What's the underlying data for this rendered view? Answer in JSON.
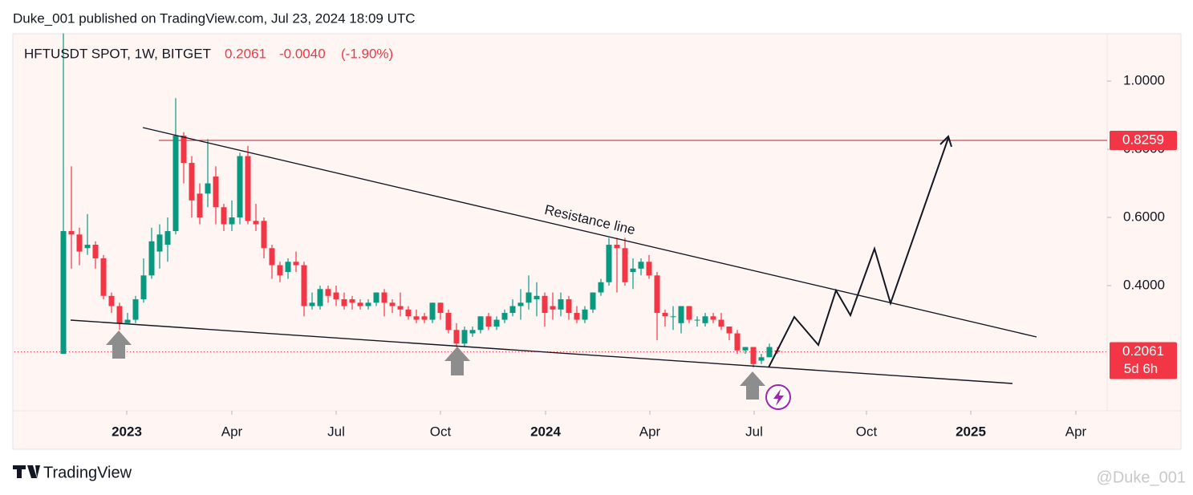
{
  "header": {
    "published": "Duke_001 published on TradingView.com, Jul 23, 2024 18:09 UTC",
    "symbol": "HFTUSDT SPOT, 1W, BITGET",
    "price": "0.2061",
    "change": "-0.0040",
    "change_pct": "(-1.90%)"
  },
  "chart_data": {
    "type": "candlestick",
    "annotation": "Resistance line",
    "up_color": "#089981",
    "down_color": "#f23645",
    "x": [
      0,
      1,
      2,
      3,
      4,
      5,
      6,
      7,
      8,
      9,
      10,
      11,
      12,
      13,
      14,
      15,
      16,
      17,
      18,
      19,
      20,
      21,
      22,
      23,
      24,
      25,
      26,
      27,
      28,
      29,
      30,
      31,
      32,
      33,
      34,
      35,
      36,
      37,
      38,
      39,
      40,
      41,
      42,
      43,
      44,
      45,
      46,
      47,
      48,
      49,
      50,
      51,
      52,
      53,
      54,
      55,
      56,
      57,
      58,
      59,
      60,
      61,
      62,
      63,
      64,
      65,
      66,
      67,
      68,
      69,
      70,
      71,
      72,
      73,
      74,
      75,
      76,
      77,
      78,
      79,
      80,
      81,
      82,
      83,
      84,
      85,
      86,
      87,
      88,
      89
    ],
    "open": [
      0.2,
      0.56,
      0.55,
      0.51,
      0.52,
      0.48,
      0.37,
      0.34,
      0.29,
      0.3,
      0.36,
      0.43,
      0.5,
      0.52,
      0.56,
      0.84,
      0.76,
      0.67,
      0.67,
      0.72,
      0.63,
      0.58,
      0.6,
      0.78,
      0.59,
      0.59,
      0.51,
      0.46,
      0.44,
      0.47,
      0.46,
      0.34,
      0.34,
      0.39,
      0.38,
      0.36,
      0.36,
      0.35,
      0.34,
      0.35,
      0.38,
      0.35,
      0.34,
      0.33,
      0.31,
      0.31,
      0.3,
      0.35,
      0.32,
      0.27,
      0.23,
      0.26,
      0.27,
      0.31,
      0.28,
      0.3,
      0.32,
      0.34,
      0.35,
      0.36,
      0.37,
      0.34,
      0.33,
      0.36,
      0.32,
      0.3,
      0.33,
      0.38,
      0.41,
      0.52,
      0.51,
      0.44,
      0.45,
      0.47,
      0.43,
      0.32,
      0.31,
      0.29,
      0.34,
      0.3,
      0.29,
      0.31,
      0.3,
      0.28,
      0.26,
      0.21,
      0.22,
      0.18,
      0.19,
      0.21
    ],
    "high": [
      1.14,
      0.75,
      0.57,
      0.61,
      0.53,
      0.49,
      0.38,
      0.35,
      0.32,
      0.37,
      0.48,
      0.57,
      0.58,
      0.6,
      0.95,
      0.85,
      0.78,
      0.7,
      0.83,
      0.75,
      0.64,
      0.65,
      0.79,
      0.81,
      0.64,
      0.6,
      0.52,
      0.47,
      0.48,
      0.5,
      0.47,
      0.38,
      0.4,
      0.4,
      0.4,
      0.38,
      0.37,
      0.36,
      0.36,
      0.38,
      0.39,
      0.36,
      0.38,
      0.34,
      0.33,
      0.32,
      0.35,
      0.35,
      0.33,
      0.29,
      0.28,
      0.28,
      0.31,
      0.32,
      0.31,
      0.33,
      0.36,
      0.39,
      0.43,
      0.41,
      0.38,
      0.38,
      0.38,
      0.37,
      0.34,
      0.34,
      0.38,
      0.42,
      0.54,
      0.54,
      0.54,
      0.48,
      0.48,
      0.49,
      0.44,
      0.33,
      0.34,
      0.34,
      0.34,
      0.31,
      0.32,
      0.32,
      0.32,
      0.28,
      0.27,
      0.22,
      0.22,
      0.2,
      0.23,
      0.22
    ],
    "low": [
      0.2,
      0.45,
      0.46,
      0.49,
      0.45,
      0.36,
      0.32,
      0.27,
      0.29,
      0.29,
      0.35,
      0.42,
      0.45,
      0.47,
      0.55,
      0.7,
      0.6,
      0.58,
      0.63,
      0.58,
      0.56,
      0.56,
      0.58,
      0.58,
      0.56,
      0.48,
      0.42,
      0.41,
      0.42,
      0.44,
      0.31,
      0.33,
      0.33,
      0.35,
      0.34,
      0.33,
      0.33,
      0.33,
      0.33,
      0.34,
      0.31,
      0.32,
      0.31,
      0.3,
      0.29,
      0.29,
      0.29,
      0.3,
      0.26,
      0.22,
      0.22,
      0.25,
      0.26,
      0.27,
      0.27,
      0.29,
      0.31,
      0.3,
      0.33,
      0.31,
      0.28,
      0.3,
      0.31,
      0.3,
      0.29,
      0.29,
      0.32,
      0.37,
      0.4,
      0.38,
      0.4,
      0.39,
      0.43,
      0.42,
      0.24,
      0.28,
      0.27,
      0.26,
      0.29,
      0.28,
      0.28,
      0.29,
      0.27,
      0.24,
      0.2,
      0.2,
      0.16,
      0.17,
      0.19,
      0.2
    ],
    "close": [
      0.56,
      0.55,
      0.5,
      0.52,
      0.48,
      0.37,
      0.34,
      0.29,
      0.3,
      0.36,
      0.43,
      0.53,
      0.55,
      0.56,
      0.84,
      0.76,
      0.65,
      0.6,
      0.7,
      0.63,
      0.58,
      0.6,
      0.78,
      0.59,
      0.58,
      0.51,
      0.46,
      0.43,
      0.47,
      0.46,
      0.34,
      0.35,
      0.39,
      0.37,
      0.36,
      0.34,
      0.35,
      0.34,
      0.35,
      0.38,
      0.35,
      0.34,
      0.33,
      0.31,
      0.3,
      0.3,
      0.35,
      0.32,
      0.27,
      0.23,
      0.27,
      0.27,
      0.31,
      0.28,
      0.3,
      0.32,
      0.34,
      0.35,
      0.38,
      0.37,
      0.32,
      0.33,
      0.36,
      0.32,
      0.3,
      0.33,
      0.38,
      0.41,
      0.52,
      0.51,
      0.41,
      0.45,
      0.47,
      0.43,
      0.32,
      0.31,
      0.31,
      0.34,
      0.3,
      0.3,
      0.31,
      0.3,
      0.28,
      0.26,
      0.21,
      0.22,
      0.17,
      0.19,
      0.22,
      0.2061
    ],
    "ylim": [
      0.033,
      1.139
    ],
    "yticks": [
      {
        "value": 0.4,
        "label": "0.4000"
      },
      {
        "value": 0.6,
        "label": "0.6000"
      },
      {
        "value": 0.8,
        "label": "0.8000"
      },
      {
        "value": 1.0,
        "label": "1.0000"
      }
    ],
    "xlim": [
      -6.1,
      130.1
    ],
    "xticks": [
      {
        "value": 7.9,
        "label": "2023"
      },
      {
        "value": 21.0,
        "label": "Apr"
      },
      {
        "value": 34.0,
        "label": "Jul"
      },
      {
        "value": 47.0,
        "label": "Oct"
      },
      {
        "value": 60.1,
        "label": "2024"
      },
      {
        "value": 73.1,
        "label": "Apr"
      },
      {
        "value": 86.1,
        "label": "Jul"
      },
      {
        "value": 100.1,
        "label": "Oct"
      },
      {
        "value": 113.1,
        "label": "2025"
      },
      {
        "value": 126.2,
        "label": "Apr"
      }
    ],
    "price_line": 0.8259,
    "last_price": 0.2061,
    "countdown": "5d 6h"
  },
  "footer": {
    "brand": "TradingView",
    "watermark": "@Duke_001"
  }
}
